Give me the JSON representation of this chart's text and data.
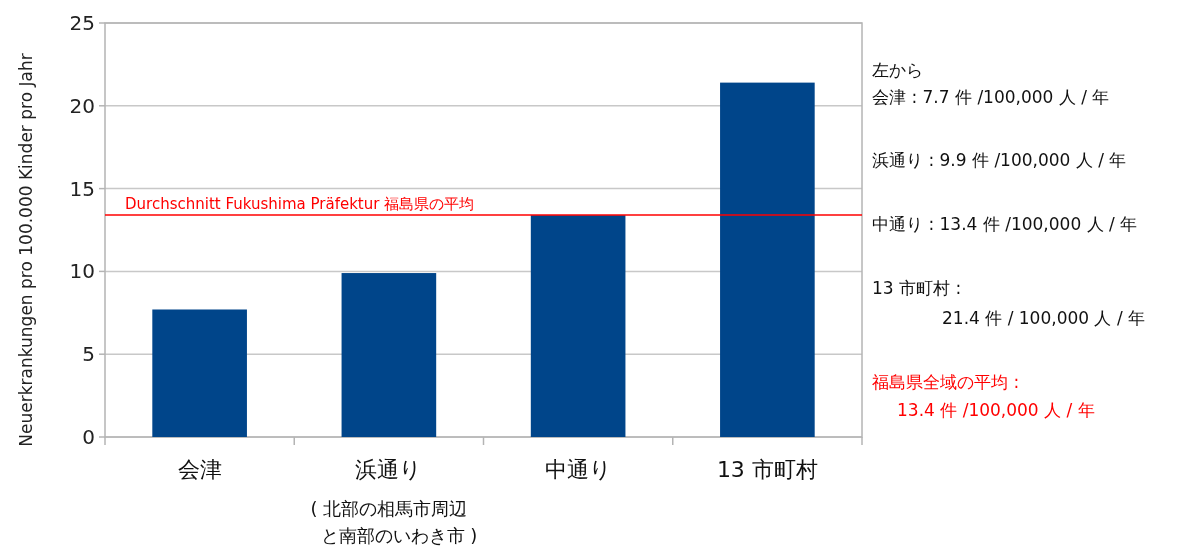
{
  "chart_data": {
    "type": "bar",
    "ylabel": "Neuerkrankungen pro 100.000 Kinder pro Jahr",
    "categories": [
      "会津",
      "浜通り",
      "中通り",
      "13 市町村"
    ],
    "values": [
      7.7,
      9.9,
      13.4,
      21.4
    ],
    "color": "#00458a",
    "ylim": [
      0,
      25
    ],
    "yticks": [
      0,
      5,
      10,
      15,
      20,
      25
    ],
    "grid": "y",
    "ref_lines": [
      {
        "axis": "y",
        "value": 13.4,
        "label": "Durchschnitt Fukushima Präfektur 福島県の平均",
        "color": "#ff0000"
      }
    ],
    "annotations": [
      "左から",
      "会津 : 7.7 件 /100,000 人 / 年",
      "浜通り : 9.9 件 /100,000 人 / 年",
      "中通り : 13.4 件 /100,000 人 / 年",
      "13 市町村 :",
      "21.4 件 / 100,000 人 / 年",
      "福島県全域の平均 :",
      "13.4 件 /100,000 人 / 年",
      "( 北部の相馬市周辺",
      "と南部のいわき市 )"
    ]
  }
}
